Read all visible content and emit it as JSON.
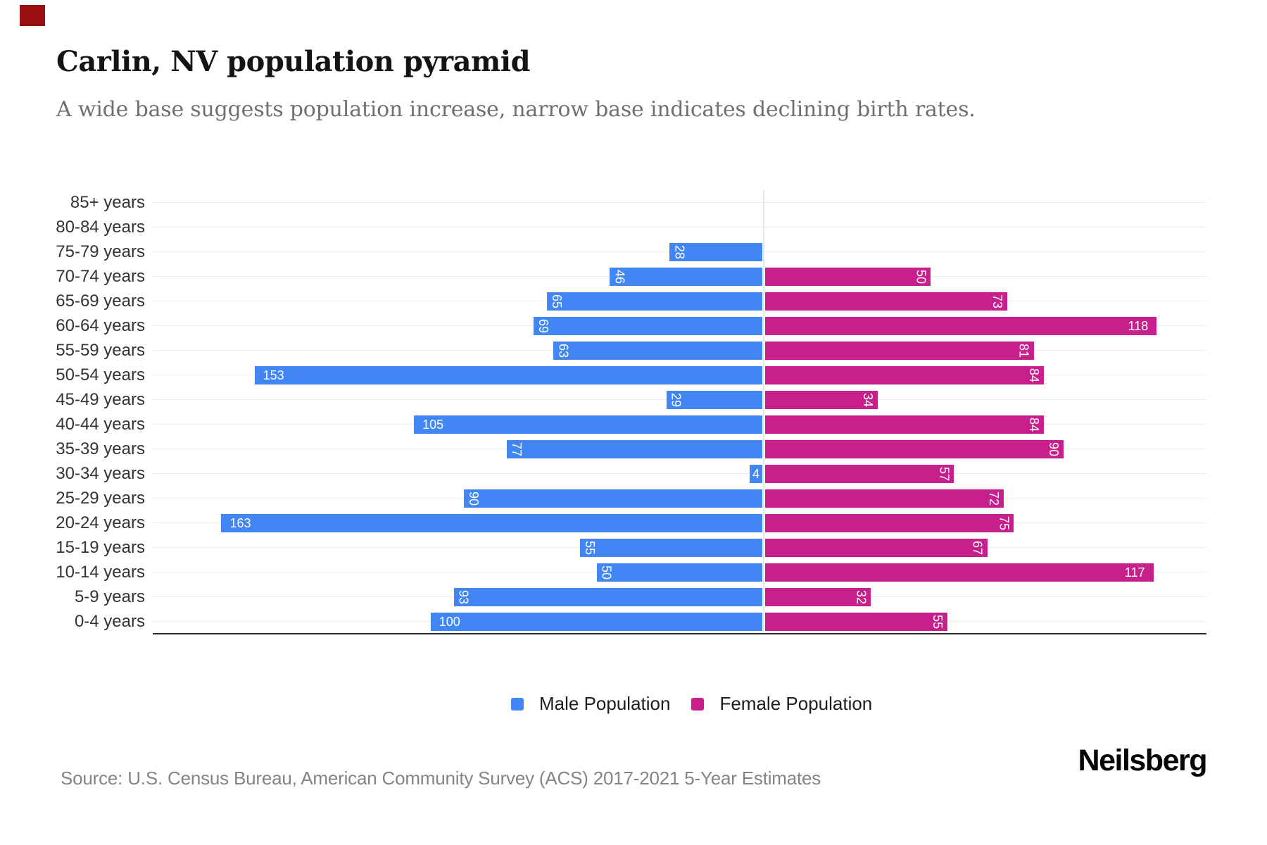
{
  "header": {
    "title": "Carlin, NV population pyramid",
    "subtitle": "A wide base suggests population increase, narrow base indicates declining birth rates."
  },
  "decorations": {
    "corner_mark_color": "#990f0f"
  },
  "chart_data": {
    "type": "bar",
    "variant": "population-pyramid-horizontal-diverging",
    "title": "Carlin, NV population pyramid",
    "categories": [
      "85+ years",
      "80-84 years",
      "75-79 years",
      "70-74 years",
      "65-69 years",
      "60-64 years",
      "55-59 years",
      "50-54 years",
      "45-49 years",
      "40-44 years",
      "35-39 years",
      "30-34 years",
      "25-29 years",
      "20-24 years",
      "15-19 years",
      "10-14 years",
      "5-9 years",
      "0-4 years"
    ],
    "series": [
      {
        "name": "Male Population",
        "side": "left",
        "color": "#4285F4",
        "values": [
          0,
          0,
          28,
          46,
          65,
          69,
          63,
          153,
          29,
          105,
          77,
          4,
          90,
          163,
          55,
          50,
          93,
          100
        ]
      },
      {
        "name": "Female Population",
        "side": "right",
        "color": "#C7208C",
        "values": [
          0,
          0,
          0,
          50,
          73,
          118,
          81,
          84,
          34,
          84,
          90,
          57,
          72,
          75,
          67,
          117,
          32,
          55
        ]
      }
    ],
    "value_axis": {
      "tick_labels_visible": false,
      "max_per_side": 170
    },
    "grid": "category-center-lines",
    "legend_position": "bottom-center",
    "bar_value_labels": "inside-at-outer-end, rotated 90deg when value < 100, horizontal when >= 100 or < 10"
  },
  "legend": {
    "male_label": "Male Population",
    "female_label": "Female Population"
  },
  "footer": {
    "source": "Source: U.S. Census Bureau, American Community Survey (ACS) 2017-2021 5-Year Estimates",
    "logo": "Neilsberg"
  }
}
